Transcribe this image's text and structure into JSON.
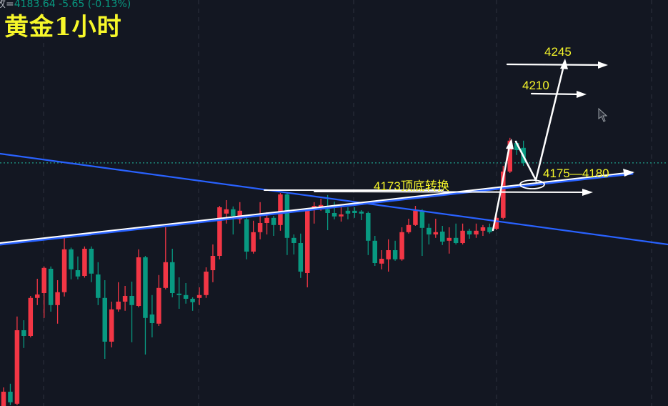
{
  "header": {
    "close_label": "收=",
    "close_value": "4183.64",
    "change": "-5.65",
    "change_pct": "(-0.13%)",
    "title": "黄金1小时"
  },
  "annotations": {
    "target_high": "4245",
    "target_mid": "4210",
    "support_zone": "4175—4180",
    "flip_level": "4173顶底转换"
  },
  "colors": {
    "up": "#f23645",
    "down": "#089981",
    "trendline": "#2962ff",
    "annotation": "#f5f52a",
    "background": "#131722"
  },
  "chart_data": {
    "type": "candlestick",
    "title": "黄金1小时",
    "last_price": 4183.64,
    "price_range": [
      4098.6,
      4240.6
    ],
    "grid": "vertical dashed",
    "candles_ohlc": [
      [
        4098.6,
        4105.1,
        4096.0,
        4103.6
      ],
      [
        4103.6,
        4106.4,
        4098.9,
        4099.9
      ],
      [
        4099.4,
        4129.9,
        4098.9,
        4125.1
      ],
      [
        4125.1,
        4128.6,
        4118.9,
        4123.1
      ],
      [
        4123.1,
        4137.1,
        4122.6,
        4136.4
      ],
      [
        4136.4,
        4143.1,
        4133.9,
        4137.6
      ],
      [
        4138.1,
        4147.4,
        4129.4,
        4146.9
      ],
      [
        4146.6,
        4147.4,
        4131.6,
        4133.9
      ],
      [
        4133.9,
        4142.6,
        4127.4,
        4138.4
      ],
      [
        4138.4,
        4157.4,
        4136.9,
        4153.4
      ],
      [
        4153.4,
        4154.0,
        4142.9,
        4146.4
      ],
      [
        4146.1,
        4150.9,
        4142.9,
        4143.9
      ],
      [
        4144.1,
        4154.4,
        4143.5,
        4153.6
      ],
      [
        4153.6,
        4154.4,
        4141.9,
        4144.9
      ],
      [
        4144.6,
        4148.9,
        4133.9,
        4136.4
      ],
      [
        4136.4,
        4142.6,
        4115.1,
        4121.1
      ],
      [
        4121.1,
        4135.1,
        4119.1,
        4132.4
      ],
      [
        4132.4,
        4141.9,
        4131.6,
        4135.1
      ],
      [
        4135.1,
        4140.6,
        4131.9,
        4137.1
      ],
      [
        4137.1,
        4142.1,
        4120.9,
        4133.9
      ],
      [
        4133.6,
        4153.4,
        4133.1,
        4150.6
      ],
      [
        4150.6,
        4151.1,
        4116.6,
        4129.4
      ],
      [
        4130.6,
        4137.4,
        4122.6,
        4127.6
      ],
      [
        4127.4,
        4144.4,
        4126.6,
        4139.9
      ],
      [
        4139.9,
        4161.1,
        4139.4,
        4148.9
      ],
      [
        4148.9,
        4153.6,
        4136.6,
        4138.1
      ],
      [
        4137.9,
        4143.6,
        4132.6,
        4137.4
      ],
      [
        4137.4,
        4141.6,
        4134.4,
        4136.1
      ],
      [
        4136.1,
        4136.6,
        4131.9,
        4134.9
      ],
      [
        4136.4,
        4140.1,
        4133.9,
        4137.4
      ],
      [
        4137.4,
        4147.1,
        4136.4,
        4145.6
      ],
      [
        4146.1,
        4155.1,
        4141.9,
        4151.1
      ],
      [
        4151.1,
        4168.6,
        4149.9,
        4168.1
      ],
      [
        4165.9,
        4170.6,
        4162.4,
        4167.4
      ],
      [
        4167.4,
        4168.4,
        4158.6,
        4165.1
      ],
      [
        4163.9,
        4169.9,
        4162.4,
        4166.9
      ],
      [
        4163.9,
        4164.4,
        4149.9,
        4152.6
      ],
      [
        4152.6,
        4163.4,
        4151.9,
        4159.4
      ],
      [
        4159.4,
        4169.9,
        4156.9,
        4162.6
      ],
      [
        4162.6,
        4166.4,
        4158.6,
        4164.4
      ],
      [
        4164.4,
        4165.1,
        4158.1,
        4161.9
      ],
      [
        4161.9,
        4173.1,
        4159.9,
        4172.6
      ],
      [
        4172.6,
        4173.1,
        4151.4,
        4157.4
      ],
      [
        4157.4,
        4158.6,
        4151.6,
        4155.6
      ],
      [
        4155.6,
        4158.9,
        4143.4,
        4145.6
      ],
      [
        4145.1,
        4166.9,
        4140.1,
        4166.9
      ],
      [
        4167.4,
        4169.9,
        4162.4,
        4168.6
      ],
      [
        4168.1,
        4171.1,
        4166.9,
        4168.9
      ],
      [
        4167.4,
        4172.4,
        4160.1,
        4166.1
      ],
      [
        4166.1,
        4170.1,
        4163.9,
        4164.9
      ],
      [
        4164.9,
        4168.9,
        4163.1,
        4165.6
      ],
      [
        4166.9,
        4168.1,
        4163.9,
        4165.9
      ],
      [
        4166.9,
        4168.1,
        4164.4,
        4166.1
      ],
      [
        4166.6,
        4167.1,
        4163.6,
        4165.9
      ],
      [
        4166.1,
        4166.6,
        4151.4,
        4156.4
      ],
      [
        4156.4,
        4158.1,
        4147.6,
        4148.6
      ],
      [
        4148.4,
        4153.1,
        4146.4,
        4150.1
      ],
      [
        4149.9,
        4156.9,
        4145.6,
        4153.1
      ],
      [
        4153.1,
        4156.4,
        4149.4,
        4149.9
      ],
      [
        4149.9,
        4161.1,
        4149.4,
        4159.4
      ],
      [
        4159.4,
        4164.1,
        4158.9,
        4161.9
      ],
      [
        4161.9,
        4168.6,
        4161.6,
        4166.9
      ],
      [
        4166.9,
        4167.4,
        4151.1,
        4160.9
      ],
      [
        4160.9,
        4162.4,
        4155.1,
        4158.6
      ],
      [
        4158.6,
        4164.1,
        4157.4,
        4159.4
      ],
      [
        4159.6,
        4161.6,
        4154.9,
        4156.1
      ],
      [
        4156.4,
        4161.1,
        4151.9,
        4157.4
      ],
      [
        4157.4,
        4162.4,
        4155.1,
        4155.6
      ],
      [
        4155.6,
        4162.4,
        4155.1,
        4159.9
      ],
      [
        4159.9,
        4160.6,
        4157.1,
        4158.6
      ],
      [
        4158.6,
        4162.4,
        4157.4,
        4159.9
      ],
      [
        4159.9,
        4161.9,
        4158.1,
        4161.1
      ],
      [
        4161.1,
        4162.4,
        4158.9,
        4159.4
      ],
      [
        4160.6,
        4165.6,
        4160.1,
        4164.4
      ],
      [
        4164.4,
        4182.6,
        4163.9,
        4180.6
      ],
      [
        4180.6,
        4192.4,
        4180.1,
        4191.4
      ],
      [
        4190.6,
        4191.4,
        4186.4,
        4188.1
      ],
      [
        4188.9,
        4191.4,
        4182.6,
        4183.64
      ]
    ]
  }
}
